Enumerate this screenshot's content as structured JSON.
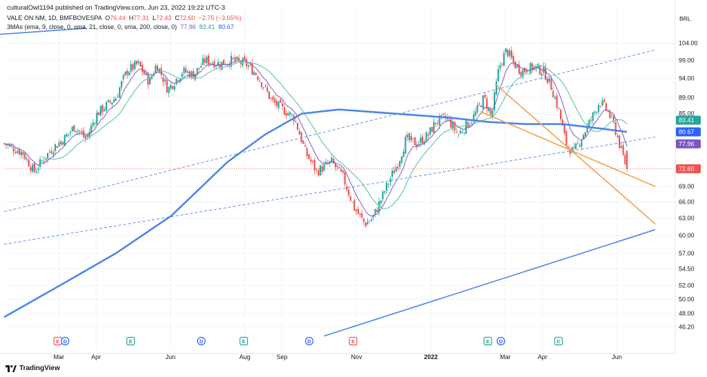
{
  "header": {
    "published": "culturalOwl1194 published on TradingView.com, Jun 23, 2022 19:22 UTC-3",
    "symbol": "VALE ON NM, 1D, BMFBOVESPA",
    "o_label": "O",
    "o_val": "76.44",
    "h_label": "H",
    "h_val": "77.31",
    "l_label": "L",
    "l_val": "72.43",
    "c_label": "C",
    "c_val": "72.60",
    "change": "−2.75 (−3.65%)",
    "ma_label": "3MAs (ema, 9, close, 0, sma, 21, close, 0, sma, 200, close, 0)",
    "ma1": "77.96",
    "ma2": "83.41",
    "ma3": "80.67"
  },
  "currency": "BRL",
  "brand": "TradingView",
  "colors": {
    "up": "#26a69a",
    "down": "#ef5350",
    "ema9": "#7e57c2",
    "sma21": "#7fcdbb",
    "sma200": "#4a86e8",
    "trend_blue": "#4a86e8",
    "trend_orange": "#f0a14b",
    "last": "#ef5350",
    "badge_ema": "#7e57c2",
    "badge_sma21": "#26a69a",
    "badge_sma200": "#2962ff"
  },
  "chart_data": {
    "type": "candlestick",
    "title": "VALE ON NM, 1D, BMFBOVESPA",
    "y_ticks": [
      104.0,
      99.0,
      94.0,
      89.0,
      85.0,
      80.67,
      77.96,
      72.6,
      69.0,
      66.0,
      63.0,
      60.0,
      57.0,
      54.5,
      52.0,
      50.0,
      48.0,
      46.2
    ],
    "y_tick_labels": [
      "104.00",
      "99.00",
      "94.00",
      "89.00",
      "85.00",
      "",
      "",
      "",
      "69.00",
      "66.00",
      "63.00",
      "60.00",
      "57.00",
      "54.50",
      "52.00",
      "50.00",
      "48.00",
      "46.20"
    ],
    "y_scale": "log",
    "ylim": [
      44.0,
      107.0
    ],
    "x_ticks": [
      "Mar",
      "Apr",
      "Jun",
      "Aug",
      "Sep",
      "Nov",
      "2022",
      "Mar",
      "Apr",
      "Jun"
    ],
    "x_tick_positions": [
      1.47,
      2.47,
      4.47,
      6.47,
      7.47,
      9.47,
      11.47,
      13.47,
      14.47,
      16.47
    ],
    "xlim": [
      0,
      18
    ],
    "ohlc_knots": [
      [
        0,
        78
      ],
      [
        0.5,
        76
      ],
      [
        0.8,
        72
      ],
      [
        1.0,
        74
      ],
      [
        1.3,
        77
      ],
      [
        1.6,
        79
      ],
      [
        1.9,
        82
      ],
      [
        2.2,
        79
      ],
      [
        2.5,
        85
      ],
      [
        3.0,
        89
      ],
      [
        3.3,
        96
      ],
      [
        3.6,
        98
      ],
      [
        3.9,
        93
      ],
      [
        4.1,
        98
      ],
      [
        4.4,
        91
      ],
      [
        4.8,
        96
      ],
      [
        5.1,
        95
      ],
      [
        5.4,
        99
      ],
      [
        5.8,
        98
      ],
      [
        6.1,
        99
      ],
      [
        6.5,
        98
      ],
      [
        6.8,
        95
      ],
      [
        7.2,
        88
      ],
      [
        7.5,
        86
      ],
      [
        7.8,
        84
      ],
      [
        8.1,
        76
      ],
      [
        8.4,
        72
      ],
      [
        8.8,
        74
      ],
      [
        9.1,
        71
      ],
      [
        9.4,
        65
      ],
      [
        9.7,
        62
      ],
      [
        9.9,
        63
      ],
      [
        10.1,
        66
      ],
      [
        10.4,
        71
      ],
      [
        10.6,
        74
      ],
      [
        10.8,
        79
      ],
      [
        11.1,
        78
      ],
      [
        11.4,
        80
      ],
      [
        11.6,
        83
      ],
      [
        11.9,
        84
      ],
      [
        12.2,
        80
      ],
      [
        12.6,
        84
      ],
      [
        12.9,
        89
      ],
      [
        13.1,
        84
      ],
      [
        13.3,
        97
      ],
      [
        13.5,
        102
      ],
      [
        13.7,
        98
      ],
      [
        13.9,
        96
      ],
      [
        14.2,
        97
      ],
      [
        14.5,
        96
      ],
      [
        14.7,
        92
      ],
      [
        14.9,
        86
      ],
      [
        15.1,
        78
      ],
      [
        15.3,
        76
      ],
      [
        15.5,
        79
      ],
      [
        15.8,
        84
      ],
      [
        16.0,
        88
      ],
      [
        16.2,
        86
      ],
      [
        16.4,
        82
      ],
      [
        16.6,
        76
      ],
      [
        16.74,
        72.6
      ]
    ],
    "series": [
      {
        "name": "ema 9",
        "last": 77.96
      },
      {
        "name": "sma 21",
        "last": 83.41
      },
      {
        "name": "sma 200",
        "last": 80.67,
        "values": [
          [
            0,
            47.5
          ],
          [
            1.5,
            52
          ],
          [
            3,
            57
          ],
          [
            4.5,
            63.5
          ],
          [
            6,
            74
          ],
          [
            7,
            80
          ],
          [
            8,
            85
          ],
          [
            9,
            86
          ],
          [
            10.5,
            85
          ],
          [
            12,
            84
          ],
          [
            13,
            83
          ],
          [
            14,
            82.5
          ],
          [
            15,
            82.5
          ],
          [
            16,
            81.5
          ],
          [
            16.74,
            80.67
          ]
        ]
      }
    ],
    "last_price": 72.6,
    "trendlines": [
      {
        "color": "blue",
        "style": "solid",
        "from": [
          -0.3,
          106.5
        ],
        "to": [
          2.2,
          108.5
        ]
      },
      {
        "color": "blue",
        "style": "dashed",
        "from": [
          0,
          64.2
        ],
        "to": [
          17.5,
          102
        ]
      },
      {
        "color": "blue",
        "style": "dashed",
        "from": [
          0,
          58.5
        ],
        "to": [
          17.5,
          79.5
        ]
      },
      {
        "color": "blue",
        "style": "solid",
        "from": [
          8.6,
          45
        ],
        "to": [
          17.5,
          61
        ]
      },
      {
        "color": "orange",
        "style": "solid",
        "from": [
          12.8,
          85.5
        ],
        "to": [
          17.5,
          69
        ]
      },
      {
        "color": "orange",
        "style": "solid",
        "from": [
          13.2,
          92.5
        ],
        "to": [
          17.5,
          62
        ]
      }
    ],
    "events": [
      {
        "type": "E",
        "x": 1.44
      },
      {
        "type": "D",
        "x": 1.64
      },
      {
        "type": "E",
        "x": 3.4
      },
      {
        "type": "D",
        "x": 5.3
      },
      {
        "type": "E",
        "x": 6.44
      },
      {
        "type": "D",
        "x": 8.2
      },
      {
        "type": "E",
        "x": 9.38
      },
      {
        "type": "E",
        "x": 13.0
      },
      {
        "type": "D",
        "x": 13.35
      },
      {
        "type": "E",
        "x": 14.9
      }
    ],
    "grid": true,
    "legend": "top-left"
  }
}
